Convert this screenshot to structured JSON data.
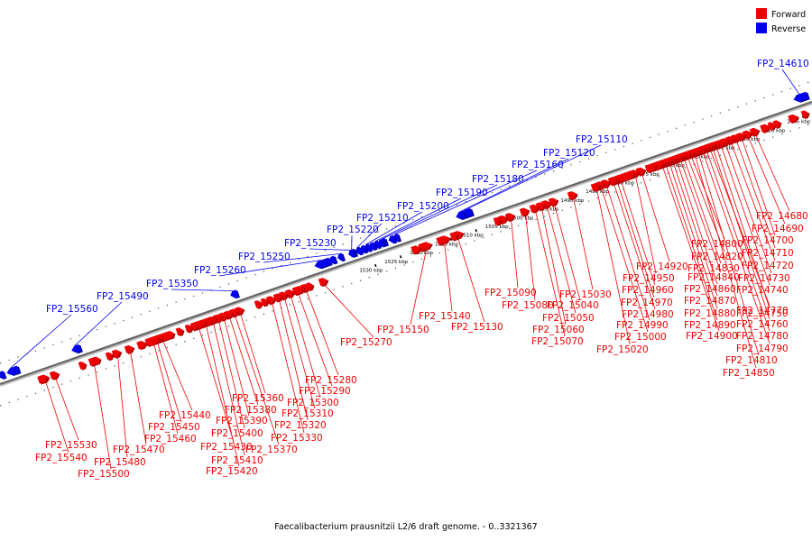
{
  "legend": {
    "items": [
      {
        "label": "Forward",
        "color": "#ee0000"
      },
      {
        "label": "Reverse",
        "color": "#0000ee"
      }
    ]
  },
  "footer": {
    "caption": "Faecalibacterium prausnitzii L2/6 draft genome. - 0..3321367"
  },
  "colors": {
    "forward": "#ee0000",
    "forward_dark": "#b00000",
    "reverse": "#0000ee",
    "reverse_dark": "#0000a0",
    "axis": "#666666",
    "tick": "#000000"
  },
  "ticks": [
    {
      "kbp": 1445,
      "label": "1445 kbp"
    },
    {
      "kbp": 1450,
      "label": "1450 kbp"
    },
    {
      "kbp": 1455,
      "label": "1455 kbp"
    },
    {
      "kbp": 1460,
      "label": "1460 kbp"
    },
    {
      "kbp": 1465,
      "label": "1465 kbp"
    },
    {
      "kbp": 1470,
      "label": "1470 kbp"
    },
    {
      "kbp": 1475,
      "label": "1475 kbp"
    },
    {
      "kbp": 1480,
      "label": "1480 kbp"
    },
    {
      "kbp": 1485,
      "label": "1485 kbp"
    },
    {
      "kbp": 1490,
      "label": "1490 kbp"
    },
    {
      "kbp": 1495,
      "label": "1495 kbp"
    },
    {
      "kbp": 1500,
      "label": "1500 kbp"
    },
    {
      "kbp": 1505,
      "label": "1505 kbp"
    },
    {
      "kbp": 1510,
      "label": "1510 kbp"
    },
    {
      "kbp": 1515,
      "label": "1515 kbp"
    },
    {
      "kbp": 1520,
      "label": "1520 kbp"
    },
    {
      "kbp": 1525,
      "label": "1525 kbp"
    },
    {
      "kbp": 1530,
      "label": "1530 kbp"
    }
  ],
  "reverse_genes": [
    {
      "name": "FP2_14610"
    },
    {
      "name": "FP2_15110"
    },
    {
      "name": "FP2_15120"
    },
    {
      "name": "FP2_15160"
    },
    {
      "name": "FP2_15180"
    },
    {
      "name": "FP2_15190"
    },
    {
      "name": "FP2_15200"
    },
    {
      "name": "FP2_15210"
    },
    {
      "name": "FP2_15220"
    },
    {
      "name": "FP2_15230"
    },
    {
      "name": "FP2_15250"
    },
    {
      "name": "FP2_15260"
    },
    {
      "name": "FP2_15350"
    },
    {
      "name": "FP2_15490"
    },
    {
      "name": "FP2_15560"
    }
  ],
  "forward_genes": [
    {
      "name": "FP2_14680"
    },
    {
      "name": "FP2_14690"
    },
    {
      "name": "FP2_14700"
    },
    {
      "name": "FP2_14710"
    },
    {
      "name": "FP2_14720"
    },
    {
      "name": "FP2_14730"
    },
    {
      "name": "FP2_14740"
    },
    {
      "name": "FP2_14750"
    },
    {
      "name": "FP2_14760"
    },
    {
      "name": "FP2_14770"
    },
    {
      "name": "FP2_14780"
    },
    {
      "name": "FP2_14790"
    },
    {
      "name": "FP2_14810"
    },
    {
      "name": "FP2_14850"
    },
    {
      "name": "FP2_14800"
    },
    {
      "name": "FP2_14820"
    },
    {
      "name": "FP2_14830"
    },
    {
      "name": "FP2_14840"
    },
    {
      "name": "FP2_14860"
    },
    {
      "name": "FP2_14870"
    },
    {
      "name": "FP2_14880"
    },
    {
      "name": "FP2_14890"
    },
    {
      "name": "FP2_14900"
    },
    {
      "name": "FP2_14920"
    },
    {
      "name": "FP2_14950"
    },
    {
      "name": "FP2_14960"
    },
    {
      "name": "FP2_14970"
    },
    {
      "name": "FP2_14980"
    },
    {
      "name": "FP2_14990"
    },
    {
      "name": "FP2_15000"
    },
    {
      "name": "FP2_15020"
    },
    {
      "name": "FP2_15030"
    },
    {
      "name": "FP2_15040"
    },
    {
      "name": "FP2_15050"
    },
    {
      "name": "FP2_15060"
    },
    {
      "name": "FP2_15070"
    },
    {
      "name": "FP2_15080"
    },
    {
      "name": "FP2_15090"
    },
    {
      "name": "FP2_15130"
    },
    {
      "name": "FP2_15140"
    },
    {
      "name": "FP2_15150"
    },
    {
      "name": "FP2_15270"
    },
    {
      "name": "FP2_15280"
    },
    {
      "name": "FP2_15290"
    },
    {
      "name": "FP2_15300"
    },
    {
      "name": "FP2_15310"
    },
    {
      "name": "FP2_15320"
    },
    {
      "name": "FP2_15330"
    },
    {
      "name": "FP2_15360"
    },
    {
      "name": "FP2_15370"
    },
    {
      "name": "FP2_15380"
    },
    {
      "name": "FP2_15390"
    },
    {
      "name": "FP2_15400"
    },
    {
      "name": "FP2_15410"
    },
    {
      "name": "FP2_15420"
    },
    {
      "name": "FP2_15430"
    },
    {
      "name": "FP2_15440"
    },
    {
      "name": "FP2_15450"
    },
    {
      "name": "FP2_15460"
    },
    {
      "name": "FP2_15470"
    },
    {
      "name": "FP2_15480"
    },
    {
      "name": "FP2_15500"
    },
    {
      "name": "FP2_15530"
    },
    {
      "name": "FP2_15540"
    }
  ]
}
